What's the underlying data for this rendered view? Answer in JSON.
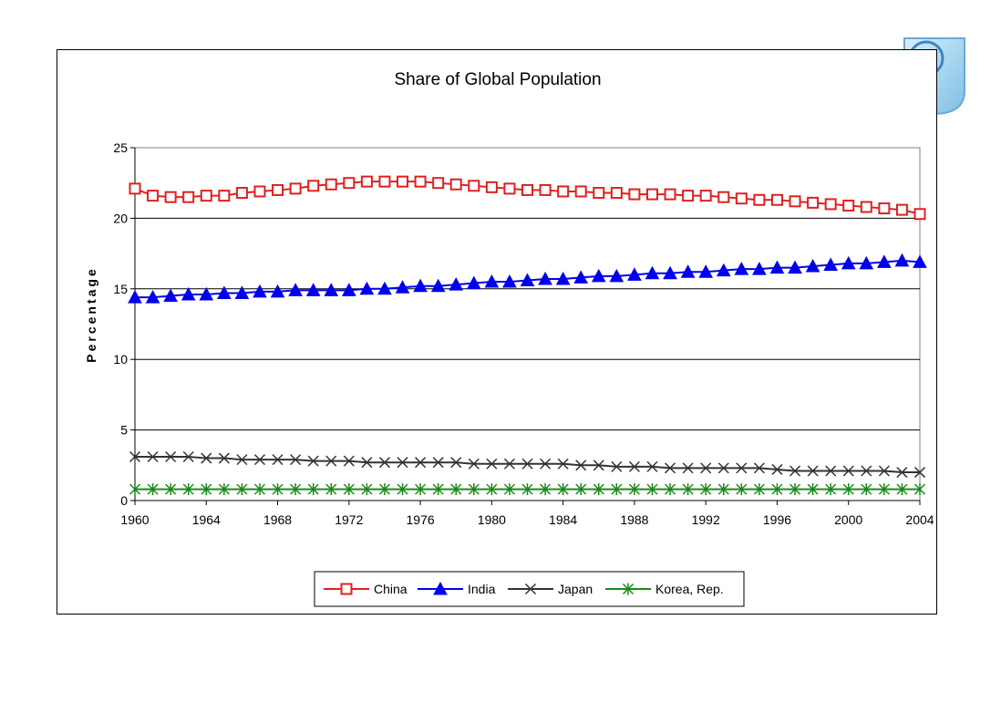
{
  "chart_data": {
    "type": "line",
    "title": "Share of Global Population",
    "xlabel": "",
    "ylabel": "Percentage",
    "ylim": [
      0,
      25
    ],
    "yticks": [
      0,
      5,
      10,
      15,
      20,
      25
    ],
    "xticks": [
      "1960",
      "1964",
      "1968",
      "1972",
      "1976",
      "1980",
      "1984",
      "1988",
      "1992",
      "1996",
      "2000",
      "2004"
    ],
    "grid": "horizontal",
    "legend_position": "bottom",
    "x": [
      1960,
      1961,
      1962,
      1963,
      1964,
      1965,
      1966,
      1967,
      1968,
      1969,
      1970,
      1971,
      1972,
      1973,
      1974,
      1975,
      1976,
      1977,
      1978,
      1979,
      1980,
      1981,
      1982,
      1983,
      1984,
      1985,
      1986,
      1987,
      1988,
      1989,
      1990,
      1991,
      1992,
      1993,
      1994,
      1995,
      1996,
      1997,
      1998,
      1999,
      2000,
      2001,
      2002,
      2003,
      2004
    ],
    "series": [
      {
        "name": "China",
        "color": "#e02020",
        "marker": "square",
        "values": [
          22.1,
          21.6,
          21.5,
          21.5,
          21.6,
          21.6,
          21.8,
          21.9,
          22.0,
          22.1,
          22.3,
          22.4,
          22.5,
          22.6,
          22.6,
          22.6,
          22.6,
          22.5,
          22.4,
          22.3,
          22.2,
          22.1,
          22.0,
          22.0,
          21.9,
          21.9,
          21.8,
          21.8,
          21.7,
          21.7,
          21.7,
          21.6,
          21.6,
          21.5,
          21.4,
          21.3,
          21.3,
          21.2,
          21.1,
          21.0,
          20.9,
          20.8,
          20.7,
          20.6,
          20.3
        ]
      },
      {
        "name": "India",
        "color": "#0000ee",
        "marker": "triangle",
        "values": [
          14.4,
          14.4,
          14.5,
          14.6,
          14.6,
          14.7,
          14.7,
          14.8,
          14.8,
          14.9,
          14.9,
          14.9,
          14.9,
          15.0,
          15.0,
          15.1,
          15.2,
          15.2,
          15.3,
          15.4,
          15.5,
          15.5,
          15.6,
          15.7,
          15.7,
          15.8,
          15.9,
          15.9,
          16.0,
          16.1,
          16.1,
          16.2,
          16.2,
          16.3,
          16.4,
          16.4,
          16.5,
          16.5,
          16.6,
          16.7,
          16.8,
          16.8,
          16.9,
          17.0,
          16.9
        ]
      },
      {
        "name": "Japan",
        "color": "#333333",
        "marker": "x",
        "values": [
          3.1,
          3.1,
          3.1,
          3.1,
          3.0,
          3.0,
          2.9,
          2.9,
          2.9,
          2.9,
          2.8,
          2.8,
          2.8,
          2.7,
          2.7,
          2.7,
          2.7,
          2.7,
          2.7,
          2.6,
          2.6,
          2.6,
          2.6,
          2.6,
          2.6,
          2.5,
          2.5,
          2.4,
          2.4,
          2.4,
          2.3,
          2.3,
          2.3,
          2.3,
          2.3,
          2.3,
          2.2,
          2.1,
          2.1,
          2.1,
          2.1,
          2.1,
          2.1,
          2.0,
          2.0
        ]
      },
      {
        "name": "Korea, Rep.",
        "color": "#1a8a1a",
        "marker": "asterisk",
        "values": [
          0.8,
          0.8,
          0.8,
          0.8,
          0.8,
          0.8,
          0.8,
          0.8,
          0.8,
          0.8,
          0.8,
          0.8,
          0.8,
          0.8,
          0.8,
          0.8,
          0.8,
          0.8,
          0.8,
          0.8,
          0.8,
          0.8,
          0.8,
          0.8,
          0.8,
          0.8,
          0.8,
          0.8,
          0.8,
          0.8,
          0.8,
          0.8,
          0.8,
          0.8,
          0.8,
          0.8,
          0.8,
          0.8,
          0.8,
          0.8,
          0.8,
          0.8,
          0.8,
          0.8,
          0.8
        ]
      }
    ]
  }
}
